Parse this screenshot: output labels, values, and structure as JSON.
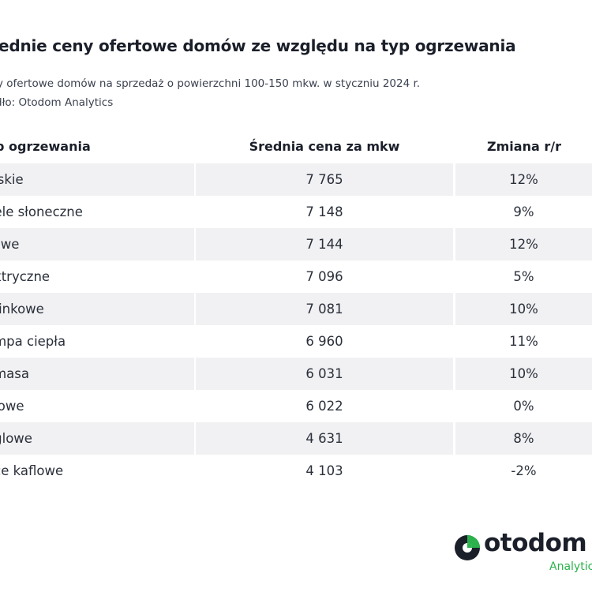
{
  "title": "ednie ceny ofertowe domów ze względu na typ ogrzewania",
  "subtitle": "y ofertowe  domów na sprzedaż o powierzchni 100-150 mkw. w styczniu 2024 r.",
  "source": "dło: Otodom Analytics",
  "table": {
    "headers": {
      "type": "p ogrzewania",
      "price": "Średnia cena za mkw",
      "change": "Zmiana r/r"
    },
    "rows": [
      {
        "type": "ejskie",
        "price": "7 765",
        "change": "12%"
      },
      {
        "type": "nele słoneczne",
        "price": "7 148",
        "change": "9%"
      },
      {
        "type": "zowe",
        "price": "7 144",
        "change": "12%"
      },
      {
        "type": "ektryczne",
        "price": "7 096",
        "change": "5%"
      },
      {
        "type": "minkowe",
        "price": "7 081",
        "change": "10%"
      },
      {
        "type": "ompa ciepła",
        "price": "6 960",
        "change": "11%"
      },
      {
        "type": "omasa",
        "price": "6 031",
        "change": "10%"
      },
      {
        "type": "ejowe",
        "price": "6 022",
        "change": "0%"
      },
      {
        "type": "eglowe",
        "price": "4 631",
        "change": "8%"
      },
      {
        "type": "ece kaflowe",
        "price": "4 103",
        "change": "-2%"
      }
    ]
  },
  "logo": {
    "text": "otodom",
    "subtext": "Analytics",
    "icon": "otodom-logo-icon",
    "colors": {
      "brand_green": "#2bb24c",
      "brand_dark": "#1b1f2a"
    }
  },
  "colors": {
    "row_shade": "#f1f1f3"
  }
}
